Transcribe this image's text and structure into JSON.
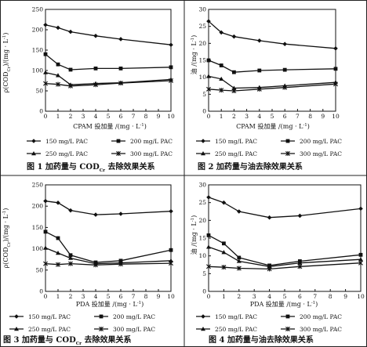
{
  "chart_data": [
    {
      "type": "line",
      "title": "",
      "caption": "图 1   加药量与 COD",
      "caption_sub": "Cr",
      "caption_tail": " 去除效果关系",
      "xlabel": "CPAM 投加量 /(mg · L",
      "xlabel_sup": "-1",
      "xlabel_tail": ")",
      "ylabel": "ρ(COD",
      "ylabel_sub": "Cr",
      "ylabel_tail": ")/(mg · L",
      "ylabel_sup": "-1",
      "ylabel_end": ")",
      "xlim": [
        0,
        10
      ],
      "ylim": [
        0,
        250
      ],
      "xticks": [
        0,
        1,
        2,
        3,
        4,
        5,
        6,
        7,
        8,
        9,
        10
      ],
      "yticks": [
        0,
        50,
        100,
        150,
        200,
        250
      ],
      "series": [
        {
          "name": "150 mg/L PAC",
          "marker": "diamond",
          "x": [
            0,
            1,
            2,
            4,
            6,
            10
          ],
          "y": [
            212,
            205,
            195,
            185,
            177,
            163
          ]
        },
        {
          "name": "200 mg/L PAC",
          "marker": "square",
          "x": [
            0,
            1,
            2,
            4,
            6,
            10
          ],
          "y": [
            140,
            115,
            102,
            105,
            105,
            108
          ]
        },
        {
          "name": "250 mg/L PAC",
          "marker": "triangle",
          "x": [
            0,
            1,
            2,
            4,
            6,
            10
          ],
          "y": [
            95,
            88,
            65,
            68,
            70,
            78
          ]
        },
        {
          "name": "300 mg/L PAC",
          "marker": "cross",
          "x": [
            0,
            1,
            2,
            4,
            6,
            10
          ],
          "y": [
            68,
            66,
            62,
            65,
            69,
            75
          ]
        }
      ]
    },
    {
      "type": "line",
      "title": "",
      "caption": "图 2   加药量与油去除效果关系",
      "xlabel": "CPAM 投加量 /(mg · L",
      "xlabel_sup": "-1",
      "xlabel_tail": ")",
      "ylabel": "油 /(mg · L",
      "ylabel_sup": "-1",
      "ylabel_end": ")",
      "xlim": [
        0,
        10
      ],
      "ylim": [
        0,
        30
      ],
      "xticks": [
        0,
        1,
        2,
        3,
        4,
        5,
        6,
        7,
        8,
        9,
        10
      ],
      "yticks": [
        0,
        5,
        10,
        15,
        20,
        25,
        30
      ],
      "series": [
        {
          "name": "150 mg/L PAC",
          "marker": "diamond",
          "x": [
            0,
            1,
            2,
            4,
            6,
            10
          ],
          "y": [
            26.5,
            23.2,
            22.0,
            20.8,
            19.8,
            18.5
          ]
        },
        {
          "name": "200 mg/L PAC",
          "marker": "square",
          "x": [
            0,
            1,
            2,
            4,
            6,
            10
          ],
          "y": [
            15.0,
            13.5,
            11.5,
            12.0,
            12.2,
            12.5
          ]
        },
        {
          "name": "250 mg/L PAC",
          "marker": "triangle",
          "x": [
            0,
            1,
            2,
            4,
            6,
            10
          ],
          "y": [
            10.3,
            9.5,
            6.8,
            7.0,
            7.5,
            8.5
          ]
        },
        {
          "name": "300 mg/L PAC",
          "marker": "cross",
          "x": [
            0,
            1,
            2,
            4,
            6,
            10
          ],
          "y": [
            6.5,
            6.2,
            6.0,
            6.5,
            7.0,
            8.0
          ]
        }
      ]
    },
    {
      "type": "line",
      "title": "",
      "caption": "图 3   加药量与 COD",
      "caption_sub": "Cr",
      "caption_tail": " 去除效果关系",
      "xlabel": "PDA 投加量 /(mg · L",
      "xlabel_sup": "-1",
      "xlabel_tail": ")",
      "ylabel": "ρ(COD",
      "ylabel_sub": "Cr",
      "ylabel_tail": ")/(mg · L",
      "ylabel_sup": "-1",
      "ylabel_end": ")",
      "xlim": [
        0,
        10
      ],
      "ylim": [
        0,
        250
      ],
      "xticks": [
        0,
        1,
        2,
        3,
        4,
        5,
        6,
        7,
        8,
        9,
        10
      ],
      "yticks": [
        0,
        50,
        100,
        150,
        200,
        250
      ],
      "series": [
        {
          "name": "150 mg/L PAC",
          "marker": "diamond",
          "x": [
            0,
            1,
            2,
            4,
            6,
            10
          ],
          "y": [
            212,
            208,
            190,
            180,
            182,
            188
          ]
        },
        {
          "name": "200 mg/L PAC",
          "marker": "square",
          "x": [
            0,
            1,
            2,
            4,
            6,
            10
          ],
          "y": [
            140,
            125,
            85,
            68,
            72,
            97
          ]
        },
        {
          "name": "250 mg/L PAC",
          "marker": "triangle",
          "x": [
            0,
            1,
            2,
            4,
            6,
            10
          ],
          "y": [
            102,
            90,
            78,
            65,
            67,
            72
          ]
        },
        {
          "name": "300 mg/L PAC",
          "marker": "cross",
          "x": [
            0,
            1,
            2,
            4,
            6,
            10
          ],
          "y": [
            65,
            63,
            65,
            62,
            64,
            66
          ]
        }
      ]
    },
    {
      "type": "line",
      "title": "",
      "caption": "图 4   加药量与油去除效果关系",
      "xlabel": "PDA 投加量 /(mg · L",
      "xlabel_sup": "-1",
      "xlabel_tail": ")",
      "ylabel": "油 /(mg · L",
      "ylabel_sup": "-1",
      "ylabel_end": ")",
      "xlim": [
        0,
        10
      ],
      "ylim": [
        0,
        30
      ],
      "xticks": [
        0,
        1,
        2,
        3,
        4,
        5,
        6,
        7,
        8,
        9,
        10
      ],
      "yticks": [
        0,
        5,
        10,
        15,
        20,
        25,
        30
      ],
      "series": [
        {
          "name": "150 mg/L PAC",
          "marker": "diamond",
          "x": [
            0,
            1,
            2,
            4,
            6,
            10
          ],
          "y": [
            26.5,
            25.0,
            22.5,
            20.8,
            21.3,
            23.3
          ]
        },
        {
          "name": "200 mg/L PAC",
          "marker": "square",
          "x": [
            0,
            1,
            2,
            4,
            6,
            10
          ],
          "y": [
            15.8,
            13.5,
            9.5,
            7.3,
            8.5,
            10.3
          ]
        },
        {
          "name": "250 mg/L PAC",
          "marker": "triangle",
          "x": [
            0,
            1,
            2,
            4,
            6,
            10
          ],
          "y": [
            12.5,
            11.0,
            8.5,
            7.0,
            8.0,
            9.0
          ]
        },
        {
          "name": "300 mg/L PAC",
          "marker": "cross",
          "x": [
            0,
            1,
            2,
            4,
            6,
            10
          ],
          "y": [
            7.0,
            6.8,
            6.5,
            6.3,
            7.0,
            8.0
          ]
        }
      ]
    }
  ]
}
